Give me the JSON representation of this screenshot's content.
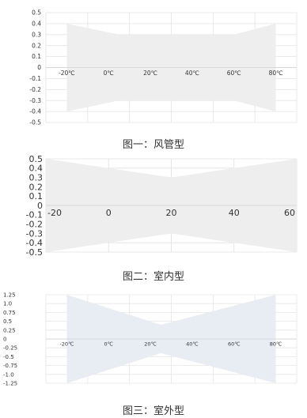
{
  "chart_data": [
    {
      "type": "area",
      "caption": "图一：风管型",
      "y_ticks": [
        "0.5",
        "0.4",
        "0.3",
        "0.2",
        "0.1",
        "0",
        "-0.1",
        "-0.2",
        "-0.3",
        "-0.4",
        "-0.5"
      ],
      "x_tick_labels": [
        "-20℃",
        "0℃",
        "20℃",
        "40℃",
        "60℃",
        "80℃"
      ],
      "x_tick_values": [
        -20,
        0,
        20,
        40,
        60,
        80
      ],
      "xlim": [
        -30,
        90
      ],
      "ylim": [
        -0.5,
        0.5
      ],
      "grid": true,
      "fill_color": "#eeeeee",
      "upper": {
        "x": [
          -20,
          5,
          60,
          80
        ],
        "y": [
          0.4,
          0.3,
          0.3,
          0.4
        ]
      },
      "lower": {
        "x": [
          -20,
          5,
          60,
          80
        ],
        "y": [
          -0.4,
          -0.3,
          -0.3,
          -0.4
        ]
      }
    },
    {
      "type": "area",
      "caption": "图二：室内型",
      "y_ticks": [
        "0.5",
        "0.4",
        "0.3",
        "0.2",
        "0.1",
        "0",
        "-0.1",
        "-0.2",
        "-0.3",
        "-0.4",
        "-0.5"
      ],
      "x_tick_labels": [
        "-20",
        "0",
        "20",
        "40",
        "60"
      ],
      "x_tick_values": [
        -20,
        0,
        20,
        40,
        60
      ],
      "xlim": [
        -20,
        60
      ],
      "ylim": [
        -0.5,
        0.5
      ],
      "grid": true,
      "fill_color": "#eeeeee",
      "upper": {
        "x": [
          -20,
          20,
          60
        ],
        "y": [
          0.5,
          0.3,
          0.5
        ]
      },
      "lower": {
        "x": [
          -20,
          20,
          60
        ],
        "y": [
          -0.5,
          -0.3,
          -0.5
        ]
      }
    },
    {
      "type": "area",
      "caption": "图三：室外型",
      "y_ticks": [
        "1.25",
        "1.0",
        "0.75",
        "0.5",
        "0.25",
        "0",
        "-0.25",
        "-0.5",
        "-0.75",
        "-1.0",
        "-1.25"
      ],
      "x_tick_labels": [
        "-20℃",
        "0℃",
        "20℃",
        "40℃",
        "60℃",
        "80℃"
      ],
      "x_tick_values": [
        -20,
        0,
        20,
        40,
        60,
        80
      ],
      "xlim": [
        -30,
        90
      ],
      "ylim": [
        -1.25,
        1.25
      ],
      "grid": true,
      "fill_color": "#e8ecf3",
      "upper": {
        "x": [
          -20,
          25,
          80
        ],
        "y": [
          1.25,
          0.4,
          1.25
        ]
      },
      "lower": {
        "x": [
          -20,
          25,
          80
        ],
        "y": [
          -1.25,
          -0.4,
          -1.25
        ]
      }
    }
  ]
}
